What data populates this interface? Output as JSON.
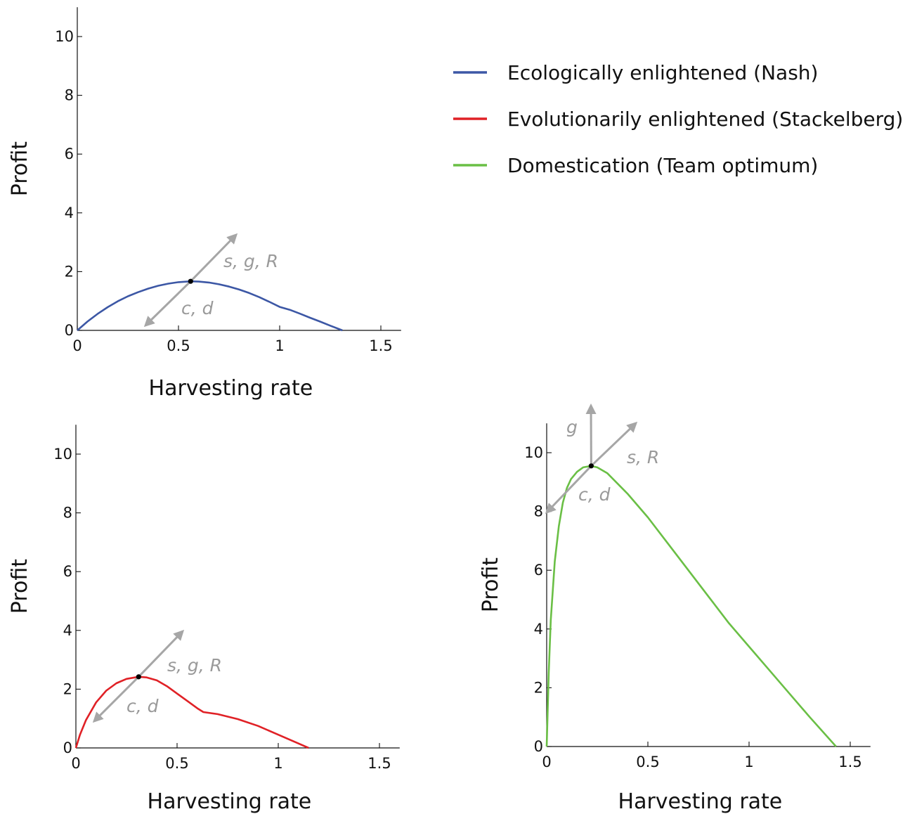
{
  "chart_data": [
    {
      "type": "line",
      "panel": "top-left",
      "xlabel": "Harvesting rate",
      "ylabel": "Profit",
      "xlim": [
        0,
        1.6
      ],
      "ylim": [
        0,
        11
      ],
      "xticks": [
        0,
        0.5,
        1,
        1.5
      ],
      "xtick_labels": [
        "0",
        "0.5",
        "1",
        "1.5"
      ],
      "yticks": [
        0,
        2,
        4,
        6,
        8,
        10
      ],
      "ytick_labels": [
        "0",
        "2",
        "4",
        "6",
        "8",
        "10"
      ],
      "series": [
        {
          "name": "Ecologically enlightened (Nash)",
          "color": "#3c57a5",
          "x": [
            0,
            0.05,
            0.1,
            0.15,
            0.2,
            0.25,
            0.3,
            0.35,
            0.4,
            0.45,
            0.5,
            0.56,
            0.6,
            0.65,
            0.7,
            0.75,
            0.8,
            0.85,
            0.9,
            0.95,
            1.0,
            1.05,
            1.1,
            1.15,
            1.2,
            1.25,
            1.31
          ],
          "y": [
            0,
            0.3,
            0.56,
            0.79,
            0.99,
            1.16,
            1.3,
            1.42,
            1.52,
            1.59,
            1.64,
            1.67,
            1.66,
            1.63,
            1.57,
            1.49,
            1.39,
            1.27,
            1.13,
            0.97,
            0.8,
            0.7,
            0.57,
            0.43,
            0.3,
            0.16,
            0
          ]
        }
      ],
      "optimum": {
        "x": 0.56,
        "y": 1.67
      },
      "arrows": [
        {
          "label": "s, g, R",
          "direction": "up-right"
        },
        {
          "label": "c, d",
          "direction": "down-left"
        }
      ]
    },
    {
      "type": "line",
      "panel": "bottom-left",
      "xlabel": "Harvesting rate",
      "ylabel": "Profit",
      "xlim": [
        0,
        1.6
      ],
      "ylim": [
        0,
        11
      ],
      "xticks": [
        0,
        0.5,
        1,
        1.5
      ],
      "xtick_labels": [
        "0",
        "0.5",
        "1",
        "1.5"
      ],
      "yticks": [
        0,
        2,
        4,
        6,
        8,
        10
      ],
      "ytick_labels": [
        "0",
        "2",
        "4",
        "6",
        "8",
        "10"
      ],
      "series": [
        {
          "name": "Evolutionarily enlightened (Stackelberg)",
          "color": "#e02126",
          "x": [
            0,
            0.02,
            0.05,
            0.1,
            0.15,
            0.2,
            0.25,
            0.31,
            0.35,
            0.4,
            0.45,
            0.5,
            0.55,
            0.6,
            0.63,
            0.7,
            0.8,
            0.9,
            1.0,
            1.1,
            1.15
          ],
          "y": [
            0,
            0.45,
            0.95,
            1.55,
            1.95,
            2.2,
            2.35,
            2.42,
            2.4,
            2.3,
            2.1,
            1.85,
            1.6,
            1.35,
            1.22,
            1.15,
            0.98,
            0.75,
            0.45,
            0.15,
            0
          ]
        }
      ],
      "optimum": {
        "x": 0.31,
        "y": 2.42
      },
      "arrows": [
        {
          "label": "s, g, R",
          "direction": "up-right"
        },
        {
          "label": "c, d",
          "direction": "down-left"
        }
      ]
    },
    {
      "type": "line",
      "panel": "bottom-right",
      "xlabel": "Harvesting rate",
      "ylabel": "Profit",
      "xlim": [
        0,
        1.6
      ],
      "ylim": [
        0,
        11
      ],
      "xticks": [
        0,
        0.5,
        1,
        1.5
      ],
      "xtick_labels": [
        "0",
        "0.5",
        "1",
        "1.5"
      ],
      "yticks": [
        0,
        2,
        4,
        6,
        8,
        10
      ],
      "ytick_labels": [
        "0",
        "2",
        "4",
        "6",
        "8",
        "10"
      ],
      "series": [
        {
          "name": "Domestication (Team optimum)",
          "color": "#6abf45",
          "x": [
            0,
            0.01,
            0.02,
            0.04,
            0.06,
            0.08,
            0.1,
            0.12,
            0.15,
            0.18,
            0.22,
            0.25,
            0.3,
            0.4,
            0.5,
            0.6,
            0.7,
            0.8,
            0.9,
            1.0,
            1.1,
            1.2,
            1.3,
            1.43
          ],
          "y": [
            0,
            2.5,
            4.3,
            6.3,
            7.5,
            8.3,
            8.8,
            9.1,
            9.35,
            9.5,
            9.55,
            9.5,
            9.3,
            8.6,
            7.8,
            6.9,
            6.0,
            5.1,
            4.2,
            3.4,
            2.6,
            1.8,
            1.0,
            0
          ]
        }
      ],
      "optimum": {
        "x": 0.22,
        "y": 9.55
      },
      "arrows": [
        {
          "label": "g",
          "direction": "up"
        },
        {
          "label": "s, R",
          "direction": "up-right"
        },
        {
          "label": "c, d",
          "direction": "down-left"
        }
      ]
    }
  ],
  "legend": {
    "placement": "top-right",
    "items": [
      {
        "label": "Ecologically enlightened (Nash)",
        "color": "#3c57a5"
      },
      {
        "label": "Evolutionarily enlightened (Stackelberg)",
        "color": "#e02126"
      },
      {
        "label": "Domestication (Team optimum)",
        "color": "#6abf45"
      }
    ]
  },
  "arrow_color": "#a6a6a6"
}
